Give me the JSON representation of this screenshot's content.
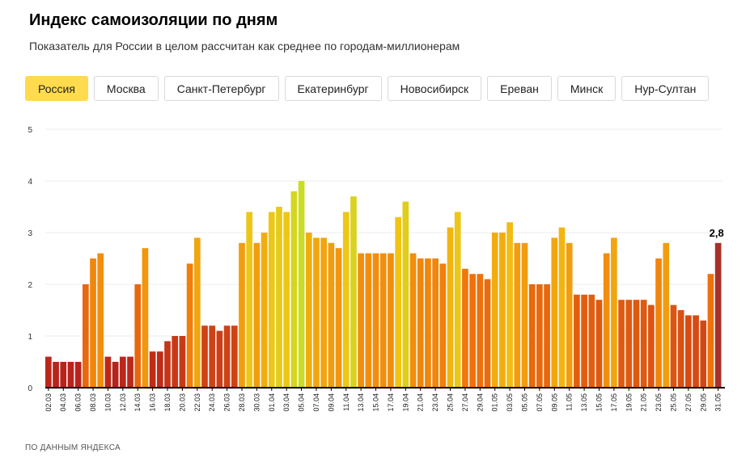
{
  "header": {
    "title": "Индекс самоизоляции по дням",
    "subtitle": "Показатель для России в целом рассчитан как среднее по городам-миллионерам"
  },
  "tabs": [
    {
      "label": "Россия",
      "active": true
    },
    {
      "label": "Москва",
      "active": false
    },
    {
      "label": "Санкт-Петербург",
      "active": false
    },
    {
      "label": "Екатеринбург",
      "active": false
    },
    {
      "label": "Новосибирск",
      "active": false
    },
    {
      "label": "Ереван",
      "active": false
    },
    {
      "label": "Минск",
      "active": false
    },
    {
      "label": "Нур-Султан",
      "active": false
    }
  ],
  "footer": {
    "source": "ПО ДАННЫМ ЯНДЕКСА"
  },
  "colors": {
    "active_tab": "#ffdb4d",
    "scale_low": "#b8231c",
    "scale_mid": "#f0730a",
    "scale_high": "#c9dc28",
    "last_bar": "#a8312a"
  },
  "chart_data": {
    "type": "bar",
    "ylim": [
      0,
      5
    ],
    "yticks": [
      "0",
      "1",
      "2",
      "3",
      "4",
      "5"
    ],
    "grid": true,
    "categories": [
      "02.03",
      "03.03",
      "04.03",
      "05.03",
      "06.03",
      "07.03",
      "08.03",
      "09.03",
      "10.03",
      "11.03",
      "12.03",
      "13.03",
      "14.03",
      "15.03",
      "16.03",
      "17.03",
      "18.03",
      "19.03",
      "20.03",
      "21.03",
      "22.03",
      "23.03",
      "24.03",
      "25.03",
      "26.03",
      "27.03",
      "28.03",
      "29.03",
      "30.03",
      "31.03",
      "01.04",
      "02.04",
      "03.04",
      "04.04",
      "05.04",
      "06.04",
      "07.04",
      "08.04",
      "09.04",
      "10.04",
      "11.04",
      "12.04",
      "13.04",
      "14.04",
      "15.04",
      "16.04",
      "17.04",
      "18.04",
      "19.04",
      "20.04",
      "21.04",
      "22.04",
      "23.04",
      "24.04",
      "25.04",
      "26.04",
      "27.04",
      "28.04",
      "29.04",
      "30.04",
      "01.05",
      "02.05",
      "03.05",
      "04.05",
      "05.05",
      "06.05",
      "07.05",
      "08.05",
      "09.05",
      "10.05",
      "11.05",
      "12.05",
      "13.05",
      "14.05",
      "15.05",
      "16.05",
      "17.05",
      "18.05",
      "19.05",
      "20.05",
      "21.05",
      "22.05",
      "23.05",
      "24.05",
      "25.05",
      "26.05",
      "27.05",
      "28.05",
      "29.05",
      "30.05",
      "31.05"
    ],
    "xtick_labels": [
      "02.03",
      "04.03",
      "06.03",
      "08.03",
      "10.03",
      "12.03",
      "14.03",
      "16.03",
      "18.03",
      "20.03",
      "22.03",
      "24.03",
      "26.03",
      "28.03",
      "30.03",
      "01.04",
      "03.04",
      "05.04",
      "07.04",
      "09.04",
      "11.04",
      "13.04",
      "15.04",
      "17.04",
      "19.04",
      "21.04",
      "23.04",
      "25.04",
      "27.04",
      "29.04",
      "01.05",
      "03.05",
      "05.05",
      "07.05",
      "09.05",
      "11.05",
      "13.05",
      "15.05",
      "17.05",
      "19.05",
      "21.05",
      "23.05",
      "25.05",
      "27.05",
      "29.05",
      "31.05"
    ],
    "values": [
      0.6,
      0.5,
      0.5,
      0.5,
      0.5,
      2.0,
      2.5,
      2.6,
      0.6,
      0.5,
      0.6,
      0.6,
      2.0,
      2.7,
      0.7,
      0.7,
      0.9,
      1.0,
      1.0,
      2.4,
      2.9,
      1.2,
      1.2,
      1.1,
      1.2,
      1.2,
      2.8,
      3.4,
      2.8,
      3.0,
      3.4,
      3.5,
      3.4,
      3.8,
      4.0,
      3.0,
      2.9,
      2.9,
      2.8,
      2.7,
      3.4,
      3.7,
      2.6,
      2.6,
      2.6,
      2.6,
      2.6,
      3.3,
      3.6,
      2.6,
      2.5,
      2.5,
      2.5,
      2.4,
      3.1,
      3.4,
      2.3,
      2.2,
      2.2,
      2.1,
      3.0,
      3.0,
      3.2,
      2.8,
      2.8,
      2.0,
      2.0,
      2.0,
      2.9,
      3.1,
      2.8,
      1.8,
      1.8,
      1.8,
      1.7,
      2.6,
      2.9,
      1.7,
      1.7,
      1.7,
      1.7,
      1.6,
      2.5,
      2.8,
      1.6,
      1.5,
      1.4,
      1.4,
      1.3,
      2.2,
      2.8
    ],
    "annotation": {
      "label": "2,8",
      "category": "31.05"
    }
  }
}
